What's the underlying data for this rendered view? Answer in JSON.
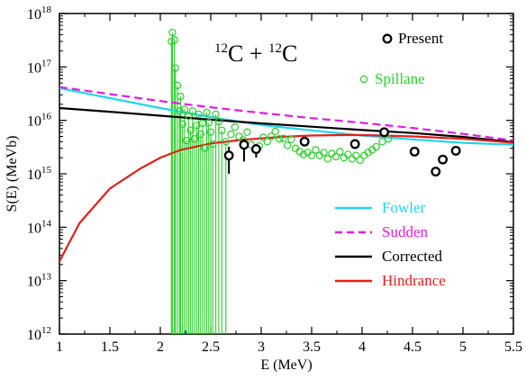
{
  "chart_data": {
    "type": "scatter",
    "title": "",
    "xlabel": "E (MeV)",
    "ylabel": "S(E) (MeVb)",
    "xlim": [
      1,
      5.5
    ],
    "ylim_log10": [
      12,
      18
    ],
    "y_scale": "log",
    "grid": false,
    "x_ticks": [
      {
        "value": 1,
        "label": "1"
      },
      {
        "value": 1.5,
        "label": "1.5"
      },
      {
        "value": 2,
        "label": "2"
      },
      {
        "value": 2.5,
        "label": "2.5"
      },
      {
        "value": 3,
        "label": "3"
      },
      {
        "value": 3.5,
        "label": "3.5"
      },
      {
        "value": 4,
        "label": "4"
      },
      {
        "value": 4.5,
        "label": "4.5"
      },
      {
        "value": 5,
        "label": "5"
      },
      {
        "value": 5.5,
        "label": "5.5"
      }
    ],
    "y_ticks": [
      {
        "exp": 12,
        "base": "10",
        "sup": "12"
      },
      {
        "exp": 13,
        "base": "10",
        "sup": "13"
      },
      {
        "exp": 14,
        "base": "10",
        "sup": "14"
      },
      {
        "exp": 15,
        "base": "10",
        "sup": "15"
      },
      {
        "exp": 16,
        "base": "10",
        "sup": "16"
      },
      {
        "exp": 17,
        "base": "10",
        "sup": "17"
      },
      {
        "exp": 18,
        "base": "10",
        "sup": "18"
      }
    ],
    "annotation": {
      "sup1": "12",
      "base1": "C + ",
      "sup2": "12",
      "base2": "C"
    },
    "legend_top": [
      {
        "name": "Present",
        "color": "#000000"
      },
      {
        "name": "Spillane",
        "color": "#2ecc2e"
      }
    ],
    "legend_bottom": [
      {
        "name": "Fowler",
        "color": "#22d3ee",
        "dash": false
      },
      {
        "name": "Sudden",
        "color": "#e11ee1",
        "dash": true
      },
      {
        "name": "Corrected",
        "color": "#000000",
        "dash": false
      },
      {
        "name": "Hindrance",
        "color": "#e0201a",
        "dash": false
      }
    ],
    "lines": [
      {
        "name": "Fowler",
        "color": "#22d3ee",
        "dash": false,
        "x": [
          1,
          1.5,
          2,
          2.5,
          3,
          3.5,
          4,
          4.5,
          5,
          5.5
        ],
        "y": [
          4e+16,
          2.6e+16,
          1.7e+16,
          1.15e+16,
          8200000000000000.0,
          6500000000000000.0,
          5200000000000000.0,
          4400000000000000.0,
          3800000000000000.0,
          3500000000000000.0
        ]
      },
      {
        "name": "Sudden",
        "color": "#e11ee1",
        "dash": true,
        "x": [
          1,
          1.5,
          2,
          2.5,
          3,
          3.5,
          4,
          4.5,
          5,
          5.5
        ],
        "y": [
          4.2e+16,
          3.1e+16,
          2.3e+16,
          1.75e+16,
          1.38e+16,
          1.1e+16,
          9000000000000000.0,
          7200000000000000.0,
          5600000000000000.0,
          4200000000000000.0
        ]
      },
      {
        "name": "Corrected",
        "color": "#000000",
        "dash": false,
        "x": [
          1,
          1.5,
          2,
          2.5,
          3,
          3.5,
          4,
          4.5,
          5,
          5.5
        ],
        "y": [
          1.7e+16,
          1.45e+16,
          1.22e+16,
          1.03e+16,
          8800000000000000.0,
          7600000000000000.0,
          6600000000000000.0,
          5800000000000000.0,
          4900000000000000.0,
          3900000000000000.0
        ]
      },
      {
        "name": "Hindrance",
        "color": "#e0201a",
        "dash": false,
        "x": [
          1,
          1.2,
          1.5,
          1.8,
          2,
          2.2,
          2.5,
          2.8,
          3,
          3.2,
          3.5,
          3.8,
          4,
          4.2,
          4.5,
          4.8,
          5,
          5.3,
          5.5
        ],
        "y": [
          23000000000000.0,
          120000000000000.0,
          530000000000000.0,
          1250000000000000.0,
          2000000000000000.0,
          2800000000000000.0,
          3700000000000000.0,
          4300000000000000.0,
          4600000000000000.0,
          4900000000000000.0,
          5200000000000000.0,
          5300000000000000.0,
          5300000000000000.0,
          5200000000000000.0,
          5000000000000000.0,
          4700000000000000.0,
          4500000000000000.0,
          4100000000000000.0,
          3800000000000000.0
        ]
      }
    ],
    "series_present": {
      "name": "Present",
      "color": "#000000",
      "points": [
        {
          "x": 2.68,
          "y": 2200000000000000.0,
          "err_low": 1000000000000000.0,
          "err_high": 3200000000000000.0
        },
        {
          "x": 2.83,
          "y": 3500000000000000.0,
          "err_low": 1700000000000000.0,
          "err_high": 4500000000000000.0
        },
        {
          "x": 2.95,
          "y": 2900000000000000.0,
          "err_low": 2000000000000000.0,
          "err_high": 3600000000000000.0
        },
        {
          "x": 3.43,
          "y": 4000000000000000.0,
          "err_low": 3400000000000000.0,
          "err_high": 4600000000000000.0
        },
        {
          "x": 3.93,
          "y": 3600000000000000.0,
          "err_low": 3100000000000000.0,
          "err_high": 4100000000000000.0
        },
        {
          "x": 4.22,
          "y": 6000000000000000.0,
          "err_low": 5400000000000000.0,
          "err_high": 6600000000000000.0
        },
        {
          "x": 4.52,
          "y": 2600000000000000.0,
          "err_low": 2200000000000000.0,
          "err_high": 3000000000000000.0
        },
        {
          "x": 4.73,
          "y": 1100000000000000.0,
          "err_low": 950000000000000.0,
          "err_high": 1250000000000000.0
        },
        {
          "x": 4.8,
          "y": 1850000000000000.0,
          "err_low": 1600000000000000.0,
          "err_high": 2100000000000000.0
        },
        {
          "x": 4.93,
          "y": 2700000000000000.0,
          "err_low": 2400000000000000.0,
          "err_high": 3000000000000000.0
        }
      ]
    },
    "series_spillane": {
      "name": "Spillane",
      "color": "#2ecc2e",
      "points": [
        {
          "x": 2.11,
          "y": 3e+17,
          "err_low": 1000000000000.0
        },
        {
          "x": 2.12,
          "y": 4.4e+17,
          "err_low": 1000000000000.0
        },
        {
          "x": 2.14,
          "y": 3.2e+17,
          "err_low": 1000000000000.0
        },
        {
          "x": 2.15,
          "y": 9.5e+16,
          "err_low": 1000000000000.0
        },
        {
          "x": 2.17,
          "y": 4.5e+16,
          "err_low": 1000000000000.0
        },
        {
          "x": 2.19,
          "y": 1.5e+16,
          "err_low": 1000000000000.0
        },
        {
          "x": 2.2,
          "y": 2.8e+16,
          "err_low": 1000000000000.0
        },
        {
          "x": 2.22,
          "y": 8500000000000000.0,
          "err_low": 1000000000000.0
        },
        {
          "x": 2.24,
          "y": 1.6e+16,
          "err_low": 1000000000000.0
        },
        {
          "x": 2.26,
          "y": 4200000000000000.0,
          "err_low": 1000000000000.0
        },
        {
          "x": 2.28,
          "y": 1.2e+16,
          "err_low": 1000000000000.0
        },
        {
          "x": 2.3,
          "y": 6500000000000000.0,
          "err_low": 1000000000000.0
        },
        {
          "x": 2.32,
          "y": 1.5e+16,
          "err_low": 1000000000000.0
        },
        {
          "x": 2.34,
          "y": 4500000000000000.0,
          "err_low": 1000000000000.0
        },
        {
          "x": 2.36,
          "y": 8000000000000000.0,
          "err_low": 1000000000000.0
        },
        {
          "x": 2.38,
          "y": 1.3e+16,
          "err_low": 1000000000000.0
        },
        {
          "x": 2.4,
          "y": 5500000000000000.0,
          "err_low": 1000000000000.0
        },
        {
          "x": 2.42,
          "y": 8800000000000000.0,
          "err_low": 1000000000000.0
        },
        {
          "x": 2.44,
          "y": 3000000000000000.0,
          "err_low": 1000000000000.0
        },
        {
          "x": 2.46,
          "y": 1.4e+16,
          "err_low": 1000000000000.0
        },
        {
          "x": 2.48,
          "y": 9000000000000000.0,
          "err_low": 1000000000000.0
        },
        {
          "x": 2.5,
          "y": 6000000000000000.0,
          "err_low": 1000000000000.0
        },
        {
          "x": 2.52,
          "y": 3600000000000000.0,
          "err_low": 1000000000000.0
        },
        {
          "x": 2.55,
          "y": 1.3e+16,
          "err_low": 1000000000000.0
        },
        {
          "x": 2.58,
          "y": 9500000000000000.0,
          "err_low": 1000000000000.0
        },
        {
          "x": 2.61,
          "y": 6500000000000000.0,
          "err_low": 1000000000000.0
        },
        {
          "x": 2.65,
          "y": 4000000000000000.0,
          "err_low": 1000000000000.0
        },
        {
          "x": 2.7,
          "y": 5500000000000000.0
        },
        {
          "x": 2.74,
          "y": 7500000000000000.0
        },
        {
          "x": 2.78,
          "y": 5000000000000000.0
        },
        {
          "x": 2.82,
          "y": 4300000000000000.0
        },
        {
          "x": 2.86,
          "y": 6000000000000000.0
        },
        {
          "x": 2.9,
          "y": 3500000000000000.0
        },
        {
          "x": 2.94,
          "y": 2800000000000000.0
        },
        {
          "x": 2.98,
          "y": 3300000000000000.0
        },
        {
          "x": 3.02,
          "y": 4800000000000000.0
        },
        {
          "x": 3.06,
          "y": 4000000000000000.0
        },
        {
          "x": 3.1,
          "y": 5000000000000000.0
        },
        {
          "x": 3.14,
          "y": 6200000000000000.0
        },
        {
          "x": 3.18,
          "y": 4500000000000000.0
        },
        {
          "x": 3.22,
          "y": 4600000000000000.0
        },
        {
          "x": 3.26,
          "y": 3400000000000000.0
        },
        {
          "x": 3.3,
          "y": 4400000000000000.0
        },
        {
          "x": 3.34,
          "y": 3000000000000000.0
        },
        {
          "x": 3.38,
          "y": 2600000000000000.0
        },
        {
          "x": 3.42,
          "y": 2300000000000000.0
        },
        {
          "x": 3.46,
          "y": 2500000000000000.0
        },
        {
          "x": 3.5,
          "y": 2200000000000000.0
        },
        {
          "x": 3.54,
          "y": 2800000000000000.0
        },
        {
          "x": 3.58,
          "y": 2200000000000000.0
        },
        {
          "x": 3.62,
          "y": 2500000000000000.0
        },
        {
          "x": 3.66,
          "y": 1900000000000000.0
        },
        {
          "x": 3.7,
          "y": 2400000000000000.0
        },
        {
          "x": 3.74,
          "y": 2100000000000000.0
        },
        {
          "x": 3.78,
          "y": 2600000000000000.0
        },
        {
          "x": 3.82,
          "y": 2000000000000000.0
        },
        {
          "x": 3.86,
          "y": 2300000000000000.0
        },
        {
          "x": 3.9,
          "y": 1900000000000000.0
        },
        {
          "x": 3.94,
          "y": 2200000000000000.0
        },
        {
          "x": 3.98,
          "y": 1800000000000000.0
        },
        {
          "x": 4.02,
          "y": 2200000000000000.0
        },
        {
          "x": 4.06,
          "y": 2500000000000000.0
        },
        {
          "x": 4.1,
          "y": 2800000000000000.0
        },
        {
          "x": 4.14,
          "y": 3200000000000000.0
        },
        {
          "x": 4.2,
          "y": 4000000000000000.0
        },
        {
          "x": 4.26,
          "y": 4500000000000000.0
        }
      ]
    }
  }
}
